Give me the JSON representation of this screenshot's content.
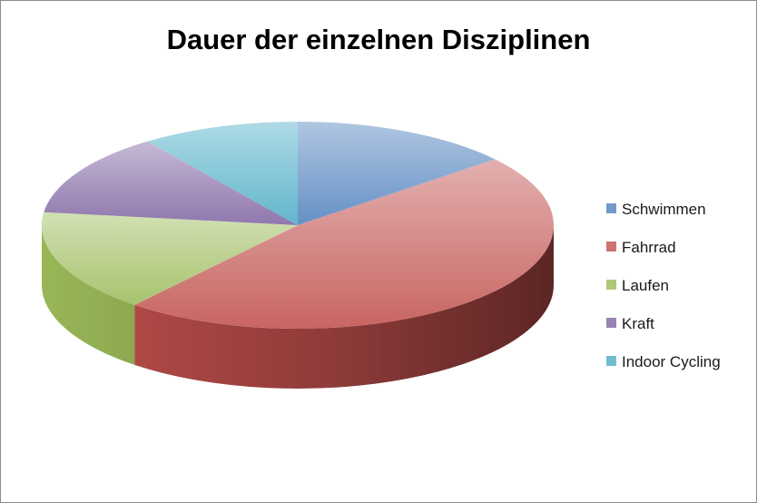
{
  "chart_data": {
    "type": "pie",
    "title": "Dauer der einzelnen Disziplinen",
    "categories": [
      "Schwimmen",
      "Fahrrad",
      "Laufen",
      "Kraft",
      "Indoor Cycling"
    ],
    "values": [
      14,
      47,
      16,
      13,
      10
    ],
    "colors": [
      "#4f81bd",
      "#c0504d",
      "#9bbb59",
      "#8064a2",
      "#4bacc6"
    ],
    "legend_position": "right",
    "style": "3d-pie"
  }
}
